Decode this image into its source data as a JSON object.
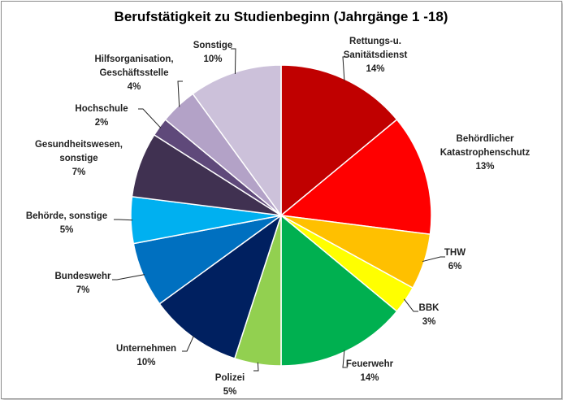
{
  "chart_data": {
    "type": "pie",
    "title": "Berufstätigkeit zu Studienbeginn (Jahrgänge 1 -18)",
    "start_angle": "top, clockwise",
    "slices": [
      {
        "label_lines": [
          "Rettungs-u.",
          "Sanitätsdienst"
        ],
        "value": 14,
        "pct_label": "14%",
        "color": "#c00000"
      },
      {
        "label_lines": [
          "Behördlicher",
          "Katastrophenschutz"
        ],
        "value": 13,
        "pct_label": "13%",
        "color": "#ff0000"
      },
      {
        "label_lines": [
          "THW"
        ],
        "value": 6,
        "pct_label": "6%",
        "color": "#ffc000"
      },
      {
        "label_lines": [
          "BBK"
        ],
        "value": 3,
        "pct_label": "3%",
        "color": "#ffff00"
      },
      {
        "label_lines": [
          "Feuerwehr"
        ],
        "value": 14,
        "pct_label": "14%",
        "color": "#00b050"
      },
      {
        "label_lines": [
          "Polizei"
        ],
        "value": 5,
        "pct_label": "5%",
        "color": "#92d050"
      },
      {
        "label_lines": [
          "Unternehmen"
        ],
        "value": 10,
        "pct_label": "10%",
        "color": "#002060"
      },
      {
        "label_lines": [
          "Bundeswehr"
        ],
        "value": 7,
        "pct_label": "7%",
        "color": "#0070c0"
      },
      {
        "label_lines": [
          "Behörde, sonstige"
        ],
        "value": 5,
        "pct_label": "5%",
        "color": "#00b0f0"
      },
      {
        "label_lines": [
          "Gesundheitswesen,",
          "sonstige"
        ],
        "value": 7,
        "pct_label": "7%",
        "color": "#403151"
      },
      {
        "label_lines": [
          "Hochschule"
        ],
        "value": 2,
        "pct_label": "2%",
        "color": "#5f497a"
      },
      {
        "label_lines": [
          "Hilfsorganisation,",
          "Geschäftsstelle"
        ],
        "value": 4,
        "pct_label": "4%",
        "color": "#b3a2c7"
      },
      {
        "label_lines": [
          "Sonstige"
        ],
        "value": 10,
        "pct_label": "10%",
        "color": "#ccc1da"
      }
    ]
  }
}
